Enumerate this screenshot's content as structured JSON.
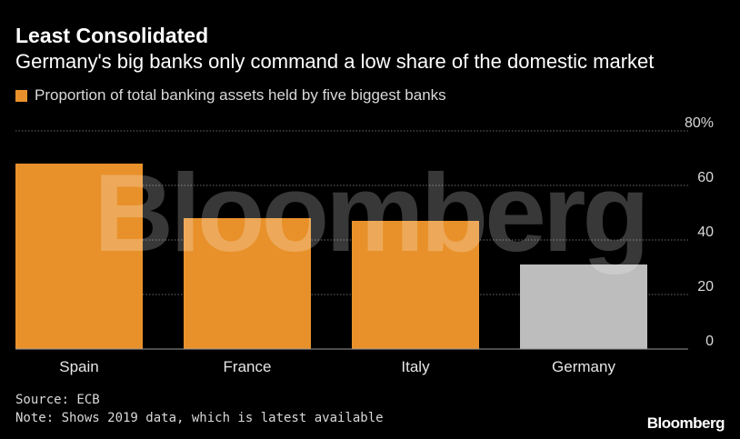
{
  "header": {
    "title": "Least Consolidated",
    "subtitle": "Germany's big banks only command a low share of the domestic market"
  },
  "legend": {
    "label": "Proportion of total banking assets held by five biggest banks",
    "color": "#e8912b"
  },
  "chart_data": {
    "type": "bar",
    "title": "Least Consolidated",
    "subtitle": "Germany's big banks only command a low share of the domestic market",
    "categories": [
      "Spain",
      "France",
      "Italy",
      "Germany"
    ],
    "series": [
      {
        "name": "Proportion of total banking assets held by five biggest banks",
        "values": [
          68,
          48,
          47,
          31
        ]
      }
    ],
    "bar_colors": [
      "#e8912b",
      "#e8912b",
      "#e8912b",
      "#bdbdbd"
    ],
    "ylim": [
      0,
      80
    ],
    "yticks": [
      0,
      20,
      40,
      60,
      80
    ],
    "ytick_labels": [
      "0",
      "20",
      "40",
      "60",
      "80%"
    ],
    "y_axis_side": "right",
    "grid": true,
    "legend_position": "top-left",
    "watermark": "Bloomberg"
  },
  "footer": {
    "source": "Source: ECB",
    "note": "Note: Shows 2019 data, which is latest available",
    "brand": "Bloomberg"
  },
  "colors": {
    "background": "#000000",
    "text": "#ffffff",
    "gridline": "#6b6b6b",
    "bar_primary": "#e8912b",
    "bar_highlight": "#bdbdbd",
    "watermark": "#ffffff"
  }
}
